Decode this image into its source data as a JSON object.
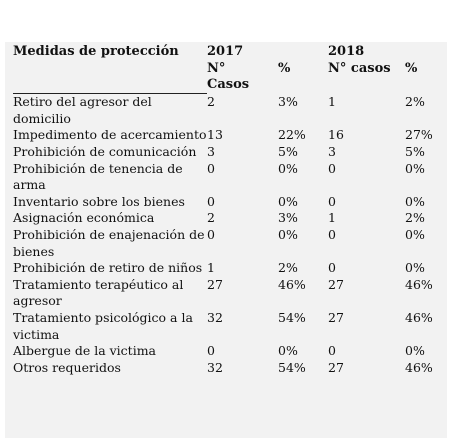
{
  "table": {
    "header": {
      "title": "Medidas de protección",
      "year_a": "2017",
      "year_b": "2018",
      "columns": [
        "N° Casos",
        "%",
        "N° casos",
        "%"
      ]
    },
    "rows": [
      [
        "Retiro del agresor del domicilio",
        "2",
        "3%",
        "1",
        "2%"
      ],
      [
        "Impedimento de acercamiento",
        "13",
        "22%",
        "16",
        "27%"
      ],
      [
        "Prohibición de comunicación",
        "3",
        "5%",
        "3",
        "5%"
      ],
      [
        "Prohibición de tenencia de arma",
        "0",
        "0%",
        "0",
        "0%"
      ],
      [
        "Inventario sobre los bienes",
        "0",
        "0%",
        "0",
        "0%"
      ],
      [
        "Asignación económica",
        "2",
        "3%",
        "1",
        "2%"
      ],
      [
        "Prohibición de enajenación de bienes",
        "0",
        "0%",
        "0",
        "0%"
      ],
      [
        "Prohibición de retiro de niños",
        "1",
        "2%",
        "0",
        "0%"
      ],
      [
        "Tratamiento terapéutico al agresor",
        "27",
        "46%",
        "27",
        "46%"
      ],
      [
        "Tratamiento psicológico a la victima",
        "32",
        "54%",
        "27",
        "46%"
      ],
      [
        "Albergue de la victima",
        "0",
        "0%",
        "0",
        "0%"
      ],
      [
        "Otros requeridos",
        "32",
        "54%",
        "27",
        "46%"
      ]
    ]
  }
}
